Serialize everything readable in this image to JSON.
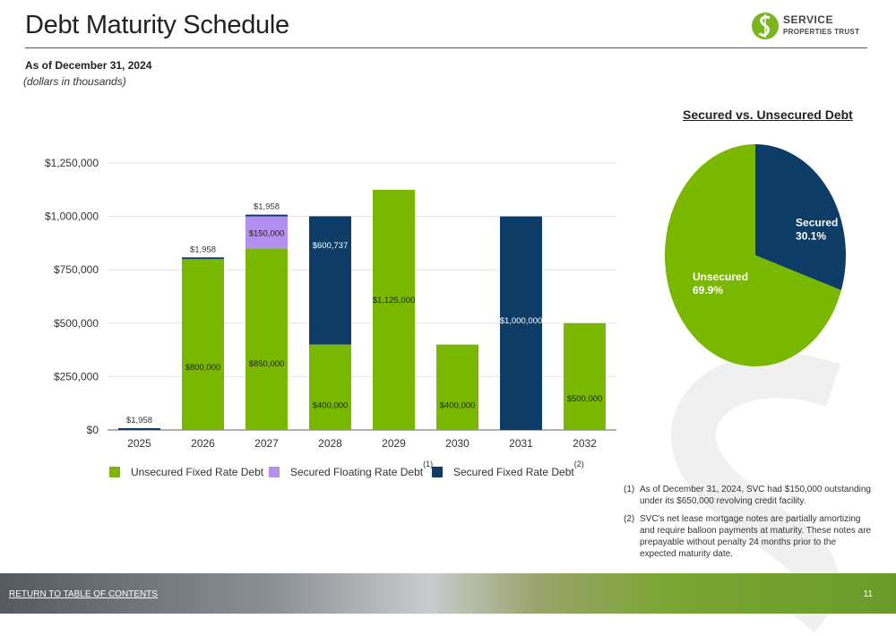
{
  "header": {
    "title": "Debt Maturity Schedule",
    "as_of": "As of December 31, 2024",
    "units": "(dollars in thousands)"
  },
  "logo": {
    "line1": "SERVICE",
    "line2": "PROPERTIES TRUST",
    "color": "#7ab51d"
  },
  "colors": {
    "unsecured_fixed": "#7ab800",
    "secured_floating": "#b38ff0",
    "secured_fixed": "#0d3d66"
  },
  "legend": {
    "items": [
      {
        "label": "Unsecured Fixed Rate Debt",
        "sup": ""
      },
      {
        "label": "Secured Floating Rate Debt",
        "sup": "(1)"
      },
      {
        "label": "Secured Fixed Rate Debt",
        "sup": "(2)"
      }
    ]
  },
  "pie": {
    "title": "Secured vs. Unsecured Debt"
  },
  "footnotes": [
    {
      "num": "(1)",
      "text": "As of December 31, 2024, SVC had $150,000 outstanding under its $650,000 revolving credit facility."
    },
    {
      "num": "(2)",
      "text": "SVC's net lease mortgage notes are partially amortizing and require balloon payments at maturity. These notes are prepayable without penalty 24 months prior to the expected maturity date."
    }
  ],
  "footer": {
    "link": "RETURN TO TABLE OF CONTENTS",
    "page": "11"
  },
  "chart_data": [
    {
      "type": "bar",
      "stacked": true,
      "categories": [
        "2025",
        "2026",
        "2027",
        "2028",
        "2029",
        "2030",
        "2031",
        "2032"
      ],
      "ylim": [
        0,
        1250000
      ],
      "yticks": [
        0,
        250000,
        500000,
        750000,
        1000000,
        1250000
      ],
      "ytick_labels": [
        "$0",
        "$250,000",
        "$500,000",
        "$750,000",
        "$1,000,000",
        "$1,250,000"
      ],
      "grid": true,
      "legend_position": "bottom",
      "series": [
        {
          "name": "Unsecured Fixed Rate Debt",
          "values": [
            0,
            800000,
            850000,
            400000,
            1125000,
            400000,
            0,
            500000
          ],
          "labels": [
            "",
            "$800,000",
            "$850,000",
            "$400,000",
            "$1,125,000",
            "$400,000",
            "",
            "$500,000"
          ]
        },
        {
          "name": "Secured Floating Rate Debt",
          "values": [
            0,
            0,
            150000,
            0,
            0,
            0,
            0,
            0
          ],
          "labels": [
            "",
            "",
            "$150,000",
            "",
            "",
            "",
            "",
            ""
          ]
        },
        {
          "name": "Secured Fixed Rate Debt",
          "values": [
            1958,
            1958,
            1958,
            600737,
            0,
            0,
            1000000,
            0
          ],
          "labels": [
            "$1,958",
            "$1,958",
            "$1,958",
            "$600,737",
            "",
            "",
            "$1,000,000",
            ""
          ]
        }
      ]
    },
    {
      "type": "pie",
      "title": "Secured vs. Unsecured Debt",
      "slices": [
        {
          "label": "Secured",
          "value": 30.1,
          "text": "30.1%"
        },
        {
          "label": "Unsecured",
          "value": 69.9,
          "text": "69.9%"
        }
      ]
    }
  ]
}
